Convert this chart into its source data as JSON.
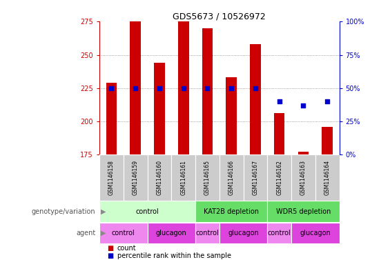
{
  "title": "GDS5673 / 10526972",
  "samples": [
    "GSM1146158",
    "GSM1146159",
    "GSM1146160",
    "GSM1146161",
    "GSM1146165",
    "GSM1146166",
    "GSM1146167",
    "GSM1146162",
    "GSM1146163",
    "GSM1146164"
  ],
  "counts": [
    229,
    276,
    244,
    276,
    270,
    233,
    258,
    206,
    177,
    196
  ],
  "count_base": 175,
  "percentile_ranks": [
    50,
    50,
    50,
    50,
    50,
    50,
    50,
    40,
    37,
    40
  ],
  "ylim_left": [
    175,
    275
  ],
  "ylim_right": [
    0,
    100
  ],
  "yticks_left": [
    175,
    200,
    225,
    250,
    275
  ],
  "yticks_right": [
    0,
    25,
    50,
    75,
    100
  ],
  "genotype_groups": [
    {
      "label": "control",
      "span": [
        0,
        4
      ],
      "color": "#ccffcc"
    },
    {
      "label": "KAT2B depletion",
      "span": [
        4,
        7
      ],
      "color": "#66dd66"
    },
    {
      "label": "WDR5 depletion",
      "span": [
        7,
        10
      ],
      "color": "#66dd66"
    }
  ],
  "agent_groups": [
    {
      "label": "control",
      "span": [
        0,
        2
      ],
      "color": "#ee88ee"
    },
    {
      "label": "glucagon",
      "span": [
        2,
        4
      ],
      "color": "#dd44dd"
    },
    {
      "label": "control",
      "span": [
        4,
        5
      ],
      "color": "#ee88ee"
    },
    {
      "label": "glucagon",
      "span": [
        5,
        7
      ],
      "color": "#dd44dd"
    },
    {
      "label": "control",
      "span": [
        7,
        8
      ],
      "color": "#ee88ee"
    },
    {
      "label": "glucagon",
      "span": [
        8,
        10
      ],
      "color": "#dd44dd"
    }
  ],
  "bar_color": "#cc0000",
  "dot_color": "#0000cc",
  "bar_width": 0.45,
  "dot_size": 25,
  "left_axis_color": "#cc0000",
  "right_axis_color": "#0000cc",
  "title_fontsize": 9,
  "tick_fontsize": 7,
  "sample_fontsize": 5.5,
  "group_fontsize": 7,
  "label_fontsize": 7,
  "legend_fontsize": 7
}
